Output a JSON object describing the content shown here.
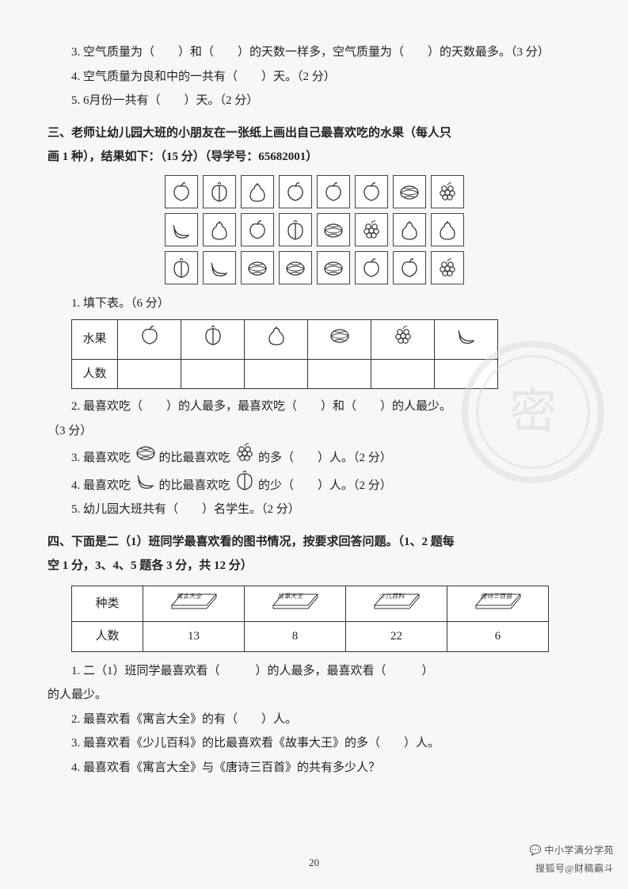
{
  "q3": "3. 空气质量为（　　）和（　　）的天数一样多，空气质量为（　　）的天数最多。（3 分）",
  "q4": "4. 空气质量为良和中的一共有（　　）天。（2 分）",
  "q5": "5. 6月份一共有（　　）天。（2 分）",
  "sec3_head1": "三、老师让幼儿园大班的小朋友在一张纸上画出自己最喜欢吃的水果（每人只",
  "sec3_head2": "画 1 种），结果如下：（15 分）（导学号：65682001）",
  "fruit_grid": {
    "rows": [
      [
        "apple",
        "peach",
        "pear",
        "apple",
        "apple",
        "apple",
        "melon",
        "grape"
      ],
      [
        "banana",
        "pear",
        "apple",
        "peach",
        "melon",
        "grape",
        "pear",
        "pear"
      ],
      [
        "peach",
        "banana",
        "melon",
        "melon",
        "melon",
        "apple",
        "apple",
        "grape"
      ]
    ]
  },
  "s3_q1": "1. 填下表。（6 分）",
  "fruit_table": {
    "row_headers": [
      "水果",
      "人数"
    ],
    "columns": [
      "apple",
      "peach",
      "pear",
      "melon",
      "grape",
      "banana"
    ]
  },
  "s3_q2": "2. 最喜欢吃（　　）的人最多，最喜欢吃（　　）和（　　）的人最少。",
  "s3_q2b": "（3 分）",
  "s3_q3a": "3. 最喜欢吃",
  "s3_q3b": "的比最喜欢吃",
  "s3_q3c": "的多（　　）人。（2 分）",
  "s3_q4a": "4. 最喜欢吃",
  "s3_q4b": "的比最喜欢吃",
  "s3_q4c": "的少（　　）人。（2 分）",
  "s3_q5": "5. 幼儿园大班共有（　　）名学生。（2 分）",
  "sec4_head1": "四、下面是二（1）班同学最喜欢看的图书情况，按要求回答问题。（1、2 题每",
  "sec4_head2": "空 1 分，3、4、5 题各 3 分，共 12 分）",
  "book_table": {
    "row_headers": [
      "种类",
      "人数"
    ],
    "books": [
      {
        "label": "寓言大全",
        "count": "13"
      },
      {
        "label": "故事大王",
        "count": "8"
      },
      {
        "label": "少儿百科",
        "count": "22"
      },
      {
        "label": "唐诗三百首",
        "count": "6"
      }
    ]
  },
  "s4_q1a": "1. 二（1）班同学最喜欢看（　　　）的人最多，最喜欢看（　　　）",
  "s4_q1b": "的人最少。",
  "s4_q2": "2. 最喜欢看《寓言大全》的有（　　）人。",
  "s4_q3": "3. 最喜欢看《少儿百科》的比最喜欢看《故事大王》的多（　　）人。",
  "s4_q4": "4. 最喜欢看《寓言大全》与《唐诗三百首》的共有多少人？",
  "page_no": "20",
  "corner_1": "中小学满分学苑",
  "corner_2": "搜狐号@财稿霸斗",
  "seal_char": "密"
}
